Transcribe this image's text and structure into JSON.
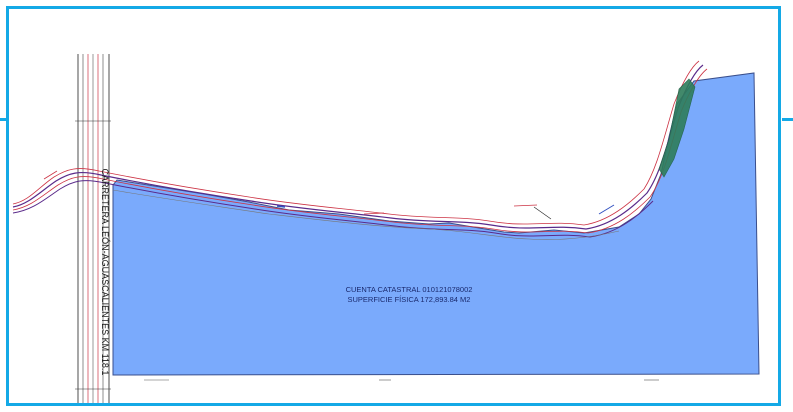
{
  "map": {
    "parcel_label_line1": "CUENTA CATASTRAL 010121078002",
    "parcel_label_line2": "SUPERFICIE FÍSICA 172,893.84 M2",
    "road_label": "CARRETERA LEÓN-AGUASCALIENTES KM 118.1"
  },
  "colors": {
    "frame_border": "#14a9e6",
    "parcel_fill": "#7aaafc",
    "parcel_stroke": "#3a4f8c",
    "river_red": "#cc3344",
    "river_purple": "#5a2a8a",
    "channel_green": "#2e7d5b"
  }
}
